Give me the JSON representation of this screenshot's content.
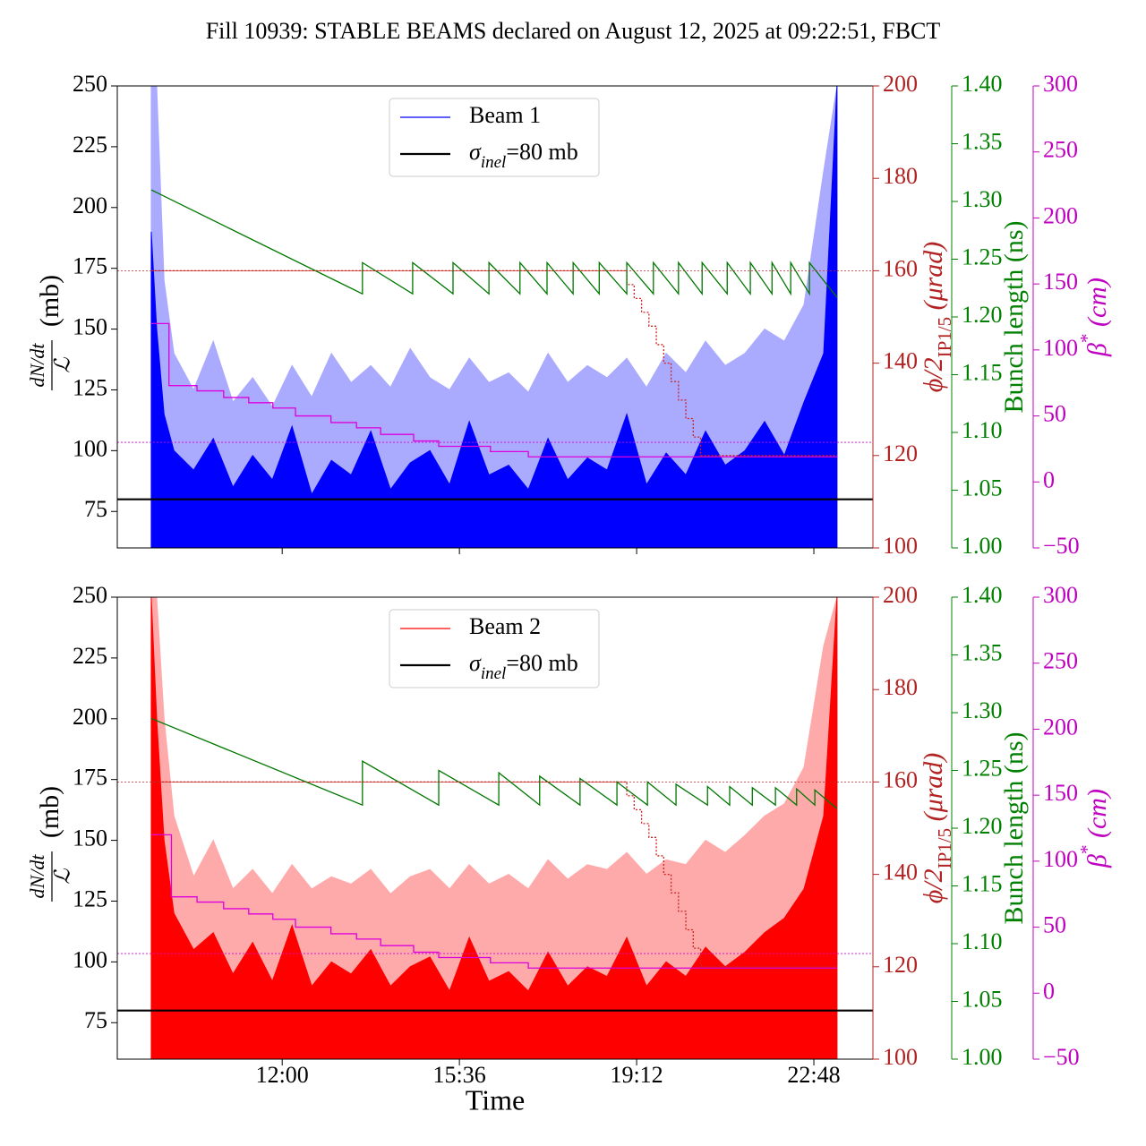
{
  "chart_data": [
    {
      "type": "line",
      "title": "Fill 10939: STABLE BEAMS declared on August 12, 2025 at 09:22:51, FBCT",
      "xlim": [
        8.65,
        24.0
      ],
      "xticks": [
        12,
        15.6,
        19.2,
        22.8
      ],
      "ylim": [
        60,
        250
      ],
      "yticks": [
        75,
        100,
        125,
        150,
        175,
        200,
        225,
        250
      ],
      "ylabel_num": "dN/dt",
      "ylabel_den": "ℒ",
      "ylabel_unit": "(mb)",
      "y2lim": [
        100,
        200
      ],
      "y2ticks": [
        100,
        120,
        140,
        160,
        180,
        200
      ],
      "y2color": "#b22222",
      "y2label": [
        "ϕ/2",
        "IP1/5",
        " (μrad)"
      ],
      "y3lim": [
        1.0,
        1.4
      ],
      "y3ticks": [
        {
          "value": 1.0,
          "label": "1.00"
        },
        1.05,
        {
          "value": 1.1,
          "label": "1.10"
        },
        1.15,
        {
          "value": 1.2,
          "label": "1.20"
        },
        1.25,
        {
          "value": 1.3,
          "label": "1.30"
        },
        1.35,
        {
          "value": 1.4,
          "label": "1.40"
        }
      ],
      "y3color": "#008000",
      "y3label": [
        "Bunch length (ns)"
      ],
      "y4lim": [
        -50,
        300
      ],
      "y4ticks": [
        {
          "value": -50,
          "label": "−50"
        },
        0,
        50,
        100,
        150,
        200,
        250,
        300
      ],
      "y4color": "#c000c0",
      "y4label": [
        "β",
        "*",
        " (cm)"
      ],
      "x": [
        9.34,
        9.45,
        9.6,
        9.8,
        10.2,
        10.6,
        11.0,
        11.4,
        11.8,
        12.2,
        12.6,
        13.0,
        13.4,
        13.8,
        14.2,
        14.6,
        15.0,
        15.4,
        15.8,
        16.2,
        16.6,
        17.0,
        17.4,
        17.8,
        18.2,
        18.6,
        19.0,
        19.4,
        19.8,
        20.2,
        20.6,
        21.0,
        21.4,
        21.8,
        22.2,
        22.6,
        23.0,
        23.27
      ],
      "series": [
        {
          "color": "#aaaaff",
          "style": "area",
          "values": [
            250,
            250,
            170,
            140,
            125,
            145,
            120,
            130,
            118,
            135,
            122,
            140,
            128,
            135,
            126,
            142,
            130,
            125,
            138,
            128,
            132,
            124,
            140,
            128,
            135,
            130,
            138,
            126,
            140,
            132,
            145,
            135,
            140,
            150,
            145,
            160,
            215,
            250
          ]
        },
        {
          "name": "Beam 1",
          "color": "#0000ff",
          "style": "area",
          "values": [
            190,
            150,
            115,
            100,
            92,
            105,
            85,
            98,
            88,
            110,
            82,
            96,
            90,
            108,
            84,
            95,
            100,
            86,
            112,
            90,
            94,
            84,
            105,
            88,
            97,
            92,
            115,
            86,
            99,
            90,
            108,
            94,
            100,
            112,
            98,
            120,
            140,
            250
          ]
        },
        {
          "axis": "y2",
          "color": "#cc2222",
          "style": "step",
          "dash": true,
          "x": [
            9.34,
            19.0,
            19.15,
            19.3,
            19.45,
            19.6,
            19.75,
            19.9,
            20.05,
            20.2,
            20.35,
            20.5,
            23.27
          ],
          "values": [
            160,
            157,
            154,
            151,
            148,
            144,
            140,
            136,
            132,
            128,
            124,
            120,
            120
          ]
        },
        {
          "axis": "y4",
          "color": "#dd00dd",
          "style": "step",
          "x": [
            9.34,
            9.7,
            10.27,
            10.81,
            11.32,
            11.81,
            12.27,
            12.99,
            13.51,
            14.0,
            14.67,
            15.18,
            16.23,
            17.0,
            23.27
          ],
          "values": [
            120,
            73,
            69,
            64,
            60,
            56,
            50,
            45,
            41,
            36,
            31,
            27,
            23,
            19,
            19
          ]
        },
        {
          "axis": "y3",
          "color": "#007700",
          "style": "line",
          "x": [
            9.34,
            13.63,
            13.63,
            14.65,
            14.65,
            15.47,
            15.47,
            16.2,
            16.2,
            16.83,
            16.83,
            17.38,
            17.38,
            17.91,
            17.91,
            18.44,
            18.44,
            19.0,
            19.0,
            19.54,
            19.54,
            20.05,
            20.05,
            20.53,
            20.53,
            21.04,
            21.04,
            21.51,
            21.51,
            21.95,
            21.95,
            22.33,
            22.33,
            22.71,
            22.71,
            23.27
          ],
          "values": [
            1.31,
            1.22,
            1.247,
            1.22,
            1.247,
            1.22,
            1.247,
            1.22,
            1.247,
            1.22,
            1.247,
            1.22,
            1.247,
            1.22,
            1.247,
            1.22,
            1.247,
            1.22,
            1.247,
            1.22,
            1.247,
            1.22,
            1.247,
            1.22,
            1.247,
            1.22,
            1.247,
            1.22,
            1.247,
            1.22,
            1.247,
            1.22,
            1.247,
            1.22,
            1.247,
            1.217
          ]
        }
      ],
      "hlines": [
        {
          "value": 80,
          "color": "#000000",
          "label": [
            "σ",
            "inel",
            "=80 mb"
          ]
        },
        {
          "axis": "y2",
          "value": 160,
          "color": "#cc2222",
          "dash": true
        },
        {
          "axis": "y4",
          "value": 30,
          "color": "#dd00dd",
          "dash": true
        }
      ]
    },
    {
      "type": "line",
      "xlabel": "Time",
      "xlim": [
        8.65,
        24.0
      ],
      "xticks": [
        {
          "value": 12,
          "label": "12:00"
        },
        {
          "value": 15.6,
          "label": "15:36"
        },
        {
          "value": 19.2,
          "label": "19:12"
        },
        {
          "value": 22.8,
          "label": "22:48"
        }
      ],
      "ylim": [
        60,
        250
      ],
      "yticks": [
        75,
        100,
        125,
        150,
        175,
        200,
        225,
        250
      ],
      "ylabel_num": "dN/dt",
      "ylabel_den": "ℒ",
      "ylabel_unit": "(mb)",
      "y2lim": [
        100,
        200
      ],
      "y2ticks": [
        100,
        120,
        140,
        160,
        180,
        200
      ],
      "y2color": "#b22222",
      "y2label": [
        "ϕ/2",
        "IP1/5",
        " (μrad)"
      ],
      "y3lim": [
        1.0,
        1.4
      ],
      "y3ticks": [
        {
          "value": 1.0,
          "label": "1.00"
        },
        1.05,
        {
          "value": 1.1,
          "label": "1.10"
        },
        1.15,
        {
          "value": 1.2,
          "label": "1.20"
        },
        1.25,
        {
          "value": 1.3,
          "label": "1.30"
        },
        1.35,
        {
          "value": 1.4,
          "label": "1.40"
        }
      ],
      "y3color": "#008000",
      "y3label": [
        "Bunch length (ns)"
      ],
      "y4lim": [
        -50,
        300
      ],
      "y4ticks": [
        {
          "value": -50,
          "label": "−50"
        },
        0,
        50,
        100,
        150,
        200,
        250,
        300
      ],
      "y4color": "#c000c0",
      "y4label": [
        "β",
        "*",
        " (cm)"
      ],
      "x": [
        9.34,
        9.45,
        9.6,
        9.8,
        10.2,
        10.6,
        11.0,
        11.4,
        11.8,
        12.2,
        12.6,
        13.0,
        13.4,
        13.8,
        14.2,
        14.6,
        15.0,
        15.4,
        15.8,
        16.2,
        16.6,
        17.0,
        17.4,
        17.8,
        18.2,
        18.6,
        19.0,
        19.4,
        19.8,
        20.2,
        20.6,
        21.0,
        21.4,
        21.8,
        22.2,
        22.6,
        23.0,
        23.27
      ],
      "series": [
        {
          "color": "#ffaaaa",
          "style": "area",
          "values": [
            250,
            250,
            200,
            160,
            135,
            150,
            130,
            138,
            128,
            140,
            130,
            135,
            132,
            138,
            128,
            135,
            138,
            130,
            140,
            132,
            136,
            130,
            142,
            134,
            140,
            138,
            145,
            136,
            142,
            140,
            150,
            145,
            152,
            160,
            165,
            180,
            230,
            250
          ]
        },
        {
          "name": "Beam 2",
          "color": "#ff0000",
          "style": "area",
          "values": [
            250,
            200,
            150,
            120,
            105,
            112,
            95,
            108,
            92,
            115,
            90,
            100,
            95,
            105,
            90,
            98,
            102,
            88,
            110,
            92,
            96,
            88,
            104,
            90,
            98,
            94,
            110,
            90,
            100,
            94,
            106,
            98,
            104,
            112,
            118,
            130,
            160,
            250
          ]
        },
        {
          "axis": "y2",
          "color": "#cc2222",
          "style": "step",
          "dash": true,
          "x": [
            9.34,
            19.0,
            19.15,
            19.3,
            19.45,
            19.6,
            19.75,
            19.9,
            20.05,
            20.2,
            20.35,
            20.5,
            23.27
          ],
          "values": [
            160,
            157,
            154,
            151,
            148,
            144,
            140,
            136,
            132,
            128,
            124,
            120,
            120
          ]
        },
        {
          "axis": "y4",
          "color": "#dd00dd",
          "style": "step",
          "x": [
            9.34,
            9.75,
            10.27,
            10.81,
            11.32,
            11.81,
            12.27,
            12.99,
            13.51,
            14.0,
            14.67,
            15.18,
            16.23,
            17.0,
            23.27
          ],
          "values": [
            120,
            73,
            69,
            64,
            60,
            56,
            50,
            45,
            41,
            36,
            31,
            27,
            23,
            19,
            19
          ]
        },
        {
          "axis": "y3",
          "color": "#007700",
          "style": "line",
          "x": [
            9.34,
            13.63,
            13.63,
            15.18,
            15.18,
            16.4,
            16.4,
            17.23,
            17.23,
            18.05,
            18.05,
            18.8,
            18.8,
            19.42,
            19.42,
            20.0,
            20.0,
            20.64,
            20.64,
            21.09,
            21.09,
            21.55,
            21.55,
            22.02,
            22.02,
            22.45,
            22.45,
            22.82,
            22.82,
            23.27
          ],
          "values": [
            1.295,
            1.22,
            1.258,
            1.22,
            1.25,
            1.22,
            1.248,
            1.22,
            1.245,
            1.22,
            1.243,
            1.22,
            1.24,
            1.22,
            1.24,
            1.22,
            1.238,
            1.22,
            1.236,
            1.22,
            1.236,
            1.22,
            1.235,
            1.22,
            1.235,
            1.22,
            1.234,
            1.22,
            1.233,
            1.217
          ]
        }
      ],
      "hlines": [
        {
          "value": 80,
          "color": "#000000",
          "label": [
            "σ",
            "inel",
            "=80 mb"
          ]
        },
        {
          "axis": "y2",
          "value": 160,
          "color": "#cc2222",
          "dash": true
        },
        {
          "axis": "y4",
          "value": 30,
          "color": "#dd00dd",
          "dash": true
        }
      ]
    }
  ]
}
